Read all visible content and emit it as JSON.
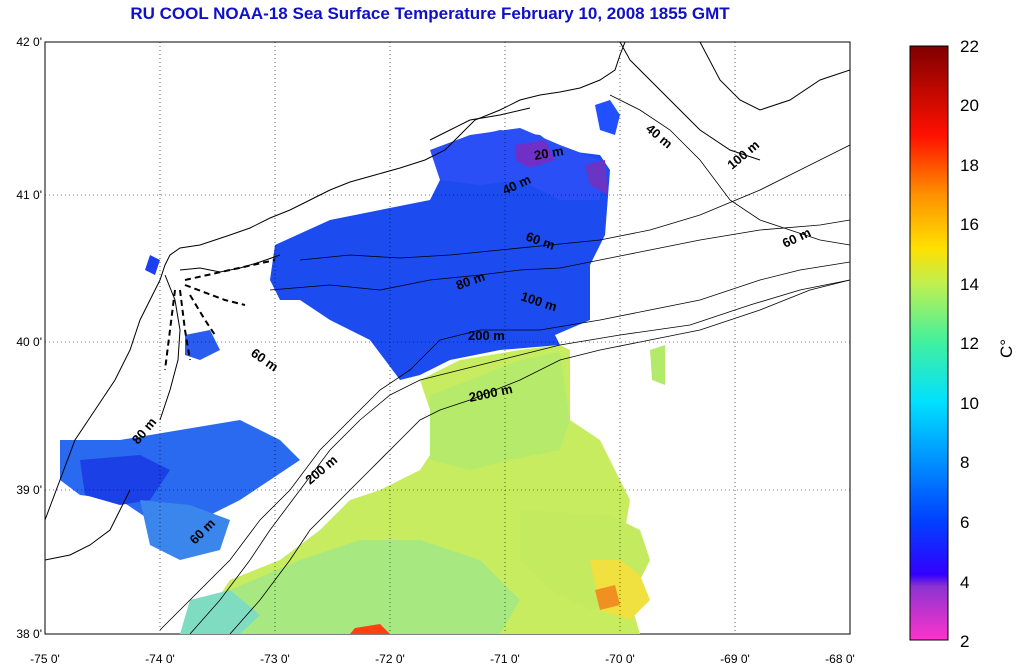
{
  "title": "RU COOL  NOAA-18 Sea Surface Temperature February 10, 2008 1855 GMT",
  "map": {
    "lon_ticks": [
      "-75 0'",
      "-74 0'",
      "-73 0'",
      "-72 0'",
      "-71 0'",
      "-70 0'",
      "-69 0'",
      "-68 0'"
    ],
    "lat_ticks": [
      "42 0'",
      "41 0'",
      "40 0'",
      "39 0'",
      "38 0'"
    ],
    "depth_labels": [
      "40 m",
      "100 m",
      "20 m",
      "40 m",
      "60 m",
      "60 m",
      "80 m",
      "100 m",
      "200 m",
      "60 m",
      "2000 m",
      "80 m",
      "200 m",
      "60 m"
    ]
  },
  "colorbar": {
    "ticks": [
      "22",
      "20",
      "18",
      "16",
      "14",
      "12",
      "10",
      "8",
      "6",
      "4",
      "2"
    ],
    "unit": "C°",
    "colors": [
      "#ff33cc",
      "#6633cc",
      "#0000ff",
      "#0070ff",
      "#00c8ff",
      "#00f0d0",
      "#60f080",
      "#d8f040",
      "#ffd000",
      "#ff8000",
      "#ff1000",
      "#b00000",
      "#800000"
    ]
  }
}
